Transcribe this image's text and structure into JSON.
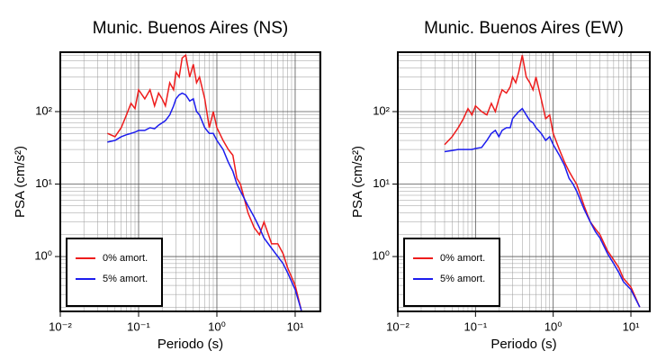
{
  "chart_data": [
    {
      "type": "line",
      "title": "Munic. Buenos Aires (NS)",
      "x_label": "Periodo (s)",
      "y_label": "PSA (cm/s²)",
      "x_scale": "log",
      "y_scale": "log",
      "grid": true,
      "legend": "lower left",
      "xlim": [
        0.01,
        21
      ],
      "ylim": [
        0.175,
        660
      ],
      "xticks": [
        {
          "value": 0.01,
          "label": "10⁻²"
        },
        {
          "value": 0.1,
          "label": "10⁻¹"
        },
        {
          "value": 1,
          "label": "10⁰"
        },
        {
          "value": 10,
          "label": "10¹"
        }
      ],
      "yticks": [
        {
          "value": 1,
          "label": "10⁰"
        },
        {
          "value": 10,
          "label": "10¹"
        },
        {
          "value": 100,
          "label": "10²"
        }
      ],
      "x_minor_ticks": [
        0.02,
        0.03,
        0.04,
        0.05,
        0.06,
        0.07,
        0.08,
        0.09,
        0.2,
        0.3,
        0.4,
        0.5,
        0.6,
        0.7,
        0.8,
        0.9,
        2,
        3,
        4,
        5,
        6,
        7,
        8,
        9,
        20
      ],
      "y_minor_ticks": [
        0.2,
        0.3,
        0.4,
        0.5,
        0.6,
        0.7,
        0.8,
        0.9,
        2,
        3,
        4,
        5,
        6,
        7,
        8,
        9,
        20,
        30,
        40,
        50,
        60,
        70,
        80,
        90,
        200,
        300,
        400,
        500,
        600
      ],
      "x": [
        0.04,
        0.05,
        0.06,
        0.07,
        0.08,
        0.09,
        0.1,
        0.12,
        0.14,
        0.16,
        0.18,
        0.2,
        0.22,
        0.25,
        0.28,
        0.3,
        0.33,
        0.36,
        0.4,
        0.45,
        0.5,
        0.55,
        0.6,
        0.7,
        0.8,
        0.9,
        1.0,
        1.2,
        1.4,
        1.6,
        1.8,
        2,
        2.5,
        3,
        3.5,
        4,
        5,
        6,
        7,
        8,
        10,
        12
      ],
      "series": [
        {
          "name": "0% amort.",
          "color": "#ee1c1c",
          "values": [
            50,
            45,
            60,
            90,
            130,
            110,
            200,
            150,
            200,
            120,
            180,
            150,
            120,
            250,
            200,
            350,
            300,
            550,
            600,
            300,
            450,
            250,
            300,
            150,
            60,
            100,
            60,
            40,
            30,
            25,
            12,
            10,
            4,
            2.5,
            2.0,
            3.0,
            1.5,
            1.5,
            1.1,
            0.7,
            0.4,
            0.18
          ]
        },
        {
          "name": "5% amort.",
          "color": "#1c1cee",
          "values": [
            38,
            40,
            45,
            48,
            50,
            52,
            55,
            55,
            60,
            58,
            65,
            70,
            75,
            90,
            120,
            150,
            170,
            180,
            170,
            140,
            150,
            100,
            90,
            60,
            50,
            50,
            40,
            30,
            20,
            15,
            10,
            8,
            5,
            3.5,
            2.5,
            1.8,
            1.3,
            1.0,
            0.8,
            0.6,
            0.35,
            0.18
          ]
        }
      ]
    },
    {
      "type": "line",
      "title": "Munic. Buenos Aires (EW)",
      "x_label": "Periodo (s)",
      "y_label": "PSA (cm/s²)",
      "x_scale": "log",
      "y_scale": "log",
      "grid": true,
      "legend": "lower left",
      "xlim": [
        0.01,
        17.5
      ],
      "ylim": [
        0.175,
        660
      ],
      "xticks": [
        {
          "value": 0.01,
          "label": "10⁻²"
        },
        {
          "value": 0.1,
          "label": "10⁻¹"
        },
        {
          "value": 1,
          "label": "10⁰"
        },
        {
          "value": 10,
          "label": "10¹"
        }
      ],
      "yticks": [
        {
          "value": 1,
          "label": "10⁰"
        },
        {
          "value": 10,
          "label": "10¹"
        },
        {
          "value": 100,
          "label": "10²"
        }
      ],
      "x_minor_ticks": [
        0.02,
        0.03,
        0.04,
        0.05,
        0.06,
        0.07,
        0.08,
        0.09,
        0.2,
        0.3,
        0.4,
        0.5,
        0.6,
        0.7,
        0.8,
        0.9,
        2,
        3,
        4,
        5,
        6,
        7,
        8,
        9
      ],
      "y_minor_ticks": [
        0.2,
        0.3,
        0.4,
        0.5,
        0.6,
        0.7,
        0.8,
        0.9,
        2,
        3,
        4,
        5,
        6,
        7,
        8,
        9,
        20,
        30,
        40,
        50,
        60,
        70,
        80,
        90,
        200,
        300,
        400,
        500,
        600
      ],
      "x": [
        0.04,
        0.05,
        0.06,
        0.07,
        0.08,
        0.09,
        0.1,
        0.12,
        0.14,
        0.16,
        0.18,
        0.2,
        0.22,
        0.25,
        0.28,
        0.3,
        0.33,
        0.36,
        0.4,
        0.45,
        0.5,
        0.55,
        0.6,
        0.7,
        0.8,
        0.9,
        1.0,
        1.2,
        1.4,
        1.6,
        1.8,
        2,
        2.5,
        3,
        3.5,
        4,
        5,
        6,
        7,
        8,
        10,
        13
      ],
      "series": [
        {
          "name": "0% amort.",
          "color": "#ee1c1c",
          "values": [
            35,
            45,
            60,
            80,
            110,
            90,
            120,
            100,
            90,
            130,
            100,
            150,
            200,
            180,
            220,
            300,
            250,
            350,
            600,
            300,
            250,
            200,
            300,
            150,
            80,
            90,
            50,
            30,
            20,
            15,
            12,
            10,
            5,
            3,
            2.4,
            2,
            1.2,
            0.9,
            0.7,
            0.5,
            0.38,
            0.2
          ]
        },
        {
          "name": "5% amort.",
          "color": "#1c1cee",
          "values": [
            28,
            29,
            30,
            30,
            30,
            30,
            31,
            32,
            40,
            50,
            55,
            45,
            55,
            60,
            60,
            80,
            90,
            100,
            110,
            90,
            75,
            70,
            60,
            50,
            40,
            45,
            35,
            25,
            18,
            12,
            10,
            8,
            4.5,
            3,
            2.2,
            1.8,
            1.1,
            0.8,
            0.6,
            0.45,
            0.35,
            0.2
          ]
        }
      ]
    }
  ]
}
